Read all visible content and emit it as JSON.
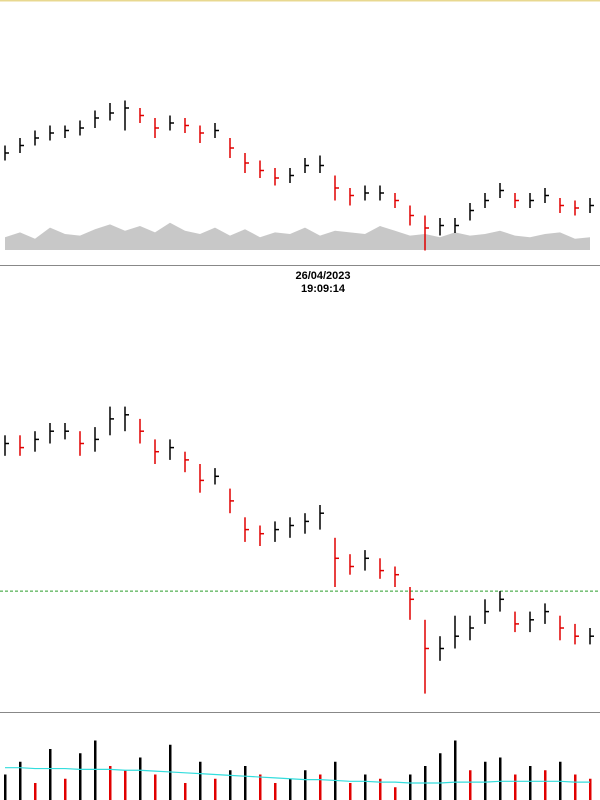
{
  "crosshair_label": {
    "date": "26/04/2023",
    "time": "19:09:14"
  },
  "chart_data": [
    {
      "type": "ohlc",
      "up_color": "#000000",
      "down_color": "#e00000",
      "ylim": [
        0,
        100
      ],
      "values": [
        42,
        45,
        48,
        50,
        51,
        52,
        56,
        58,
        60,
        57,
        52,
        54,
        53,
        50,
        51,
        44,
        38,
        35,
        32,
        33,
        37,
        37,
        28,
        25,
        26,
        26,
        23,
        17,
        12,
        13,
        13,
        19,
        23,
        27,
        23,
        23,
        25,
        21,
        20,
        21
      ],
      "high": [
        45,
        48,
        51,
        53,
        53,
        55,
        59,
        62,
        63,
        60,
        56,
        57,
        56,
        53,
        54,
        48,
        42,
        39,
        36,
        36,
        40,
        41,
        33,
        28,
        29,
        29,
        26,
        21,
        17,
        16,
        16,
        22,
        26,
        30,
        26,
        26,
        28,
        24,
        23,
        24
      ],
      "low": [
        39,
        42,
        45,
        47,
        48,
        49,
        52,
        55,
        51,
        54,
        48,
        51,
        50,
        46,
        48,
        40,
        34,
        32,
        29,
        30,
        34,
        34,
        23,
        21,
        23,
        23,
        20,
        13,
        3,
        9,
        10,
        15,
        20,
        24,
        20,
        20,
        22,
        18,
        17,
        18
      ],
      "area_color": "#b0b0b0",
      "area_ylim": [
        0,
        100
      ],
      "area": [
        40,
        55,
        35,
        70,
        50,
        45,
        65,
        80,
        60,
        75,
        55,
        85,
        60,
        50,
        70,
        45,
        65,
        40,
        55,
        50,
        70,
        45,
        60,
        55,
        50,
        75,
        60,
        45,
        50,
        40,
        55,
        45,
        50,
        60,
        45,
        40,
        50,
        55,
        35,
        40
      ]
    },
    {
      "type": "ohlc",
      "up_color": "#000000",
      "down_color": "#e00000",
      "ylim": [
        0,
        100
      ],
      "values": [
        65,
        64,
        66,
        68,
        68,
        65,
        66,
        71,
        72,
        68,
        63,
        64,
        61,
        56,
        57,
        51,
        44,
        43,
        44,
        45,
        46,
        48,
        37,
        35,
        37,
        34,
        33,
        27,
        15,
        15,
        18,
        20,
        24,
        27,
        21,
        22,
        24,
        20,
        18,
        18
      ],
      "high": [
        67,
        67,
        68,
        70,
        70,
        68,
        69,
        74,
        74,
        71,
        66,
        66,
        63,
        60,
        59,
        54,
        47,
        45,
        46,
        47,
        48,
        50,
        42,
        38,
        39,
        37,
        35,
        30,
        22,
        18,
        23,
        23,
        27,
        29,
        24,
        24,
        26,
        23,
        21,
        20
      ],
      "low": [
        62,
        62,
        63,
        65,
        66,
        62,
        63,
        67,
        68,
        65,
        60,
        61,
        58,
        53,
        55,
        48,
        41,
        40,
        41,
        42,
        43,
        44,
        30,
        33,
        34,
        32,
        30,
        22,
        4,
        12,
        15,
        17,
        21,
        24,
        19,
        19,
        21,
        17,
        16,
        16
      ],
      "reference_line": 29,
      "reference_color": "#2a9d2a"
    },
    {
      "type": "bar",
      "up_color": "#000000",
      "down_color": "#e00000",
      "ylim": [
        0,
        100
      ],
      "values": [
        30,
        45,
        20,
        60,
        25,
        55,
        70,
        40,
        35,
        50,
        30,
        65,
        20,
        45,
        25,
        35,
        40,
        30,
        20,
        25,
        35,
        30,
        45,
        20,
        30,
        25,
        15,
        30,
        40,
        55,
        70,
        35,
        45,
        50,
        30,
        40,
        35,
        45,
        30,
        25
      ],
      "average_color": "#33dddd",
      "average": [
        38,
        38,
        37,
        37,
        37,
        36,
        36,
        36,
        35,
        35,
        34,
        33,
        32,
        31,
        30,
        29,
        28,
        27,
        26,
        25,
        24,
        24,
        23,
        22,
        22,
        21,
        21,
        20,
        20,
        20,
        21,
        21,
        21,
        22,
        22,
        22,
        22,
        22,
        21,
        21
      ]
    }
  ]
}
